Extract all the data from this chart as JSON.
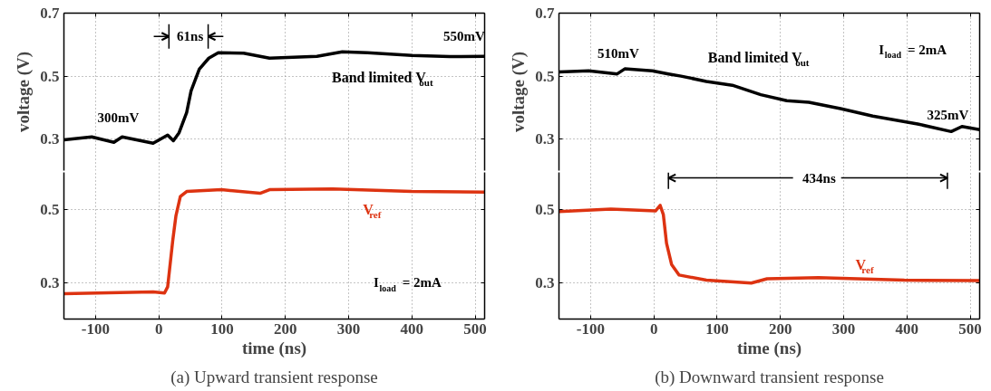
{
  "chart_data": [
    {
      "type": "line",
      "ylabel": "voltage (V)",
      "xlim": [
        -150,
        515
      ],
      "xticks": [
        -100,
        0,
        100,
        200,
        300,
        400,
        500
      ],
      "ylim": [
        0.2,
        0.7
      ],
      "yticks": [
        0.3,
        0.5,
        0.7
      ],
      "tick_labels": "y",
      "grid": true,
      "annotations": [
        "300mV",
        "61ns",
        "550mV"
      ],
      "series": [
        {
          "name": "Band limited V$_{out}$",
          "color": "#000000",
          "x": [
            -150,
            -106,
            -71,
            -58,
            -9,
            14,
            23,
            32,
            44,
            51,
            64,
            79,
            94,
            134,
            175,
            250,
            290,
            330,
            400,
            460,
            515
          ],
          "values": [
            0.298,
            0.307,
            0.29,
            0.307,
            0.287,
            0.313,
            0.295,
            0.32,
            0.384,
            0.453,
            0.522,
            0.557,
            0.574,
            0.573,
            0.557,
            0.563,
            0.577,
            0.574,
            0.566,
            0.562,
            0.563
          ]
        }
      ]
    },
    {
      "type": "line",
      "ylabel": "voltage (V)",
      "xlim": [
        -150,
        515
      ],
      "xticks": [
        -100,
        0,
        100,
        200,
        300,
        400,
        500
      ],
      "ylim": [
        0.2,
        0.7
      ],
      "yticks": [
        0.3,
        0.5,
        0.7
      ],
      "tick_labels": "y",
      "grid": true,
      "annotations": [
        "510mV",
        "325mV",
        "I$_{load}$ = 2mA"
      ],
      "series": [
        {
          "name": "Band limited V$_{out}$",
          "color": "#000000",
          "x": [
            -150,
            -103,
            -58,
            -46,
            -2.5,
            23,
            43,
            83,
            124,
            169,
            210,
            245,
            295,
            346,
            417,
            470,
            487,
            515
          ],
          "values": [
            0.513,
            0.517,
            0.507,
            0.523,
            0.517,
            0.507,
            0.5,
            0.483,
            0.471,
            0.441,
            0.422,
            0.417,
            0.397,
            0.373,
            0.348,
            0.324,
            0.34,
            0.33
          ]
        }
      ]
    },
    {
      "type": "line",
      "xlabel": "time (ns)",
      "xlim": [
        -150,
        515
      ],
      "xticks": [
        -100,
        0,
        100,
        200,
        300,
        400,
        500
      ],
      "ylim": [
        0.2,
        0.6
      ],
      "yticks": [
        0.3,
        0.5
      ],
      "grid": true,
      "annotations": [
        "I$_{load}$ = 2mA",
        "(a) Upward transient response"
      ],
      "series": [
        {
          "name": "V$_{ref}$",
          "color": "#dd3311",
          "x": [
            -150,
            -9,
            9,
            14,
            22,
            27,
            34,
            44,
            99,
            160,
            175,
            275,
            400,
            515
          ],
          "values": [
            0.269,
            0.274,
            0.271,
            0.288,
            0.414,
            0.481,
            0.534,
            0.548,
            0.553,
            0.543,
            0.553,
            0.555,
            0.548,
            0.546
          ]
        }
      ]
    },
    {
      "type": "line",
      "xlabel": "time (ns)",
      "xlim": [
        -150,
        515
      ],
      "xticks": [
        -100,
        0,
        100,
        200,
        300,
        400,
        500
      ],
      "ylim": [
        0.2,
        0.6
      ],
      "yticks": [
        0.3,
        0.5
      ],
      "grid": true,
      "annotations": [
        "434ns",
        "(b) Downward transient response"
      ],
      "series": [
        {
          "name": "V$_{ref}$",
          "color": "#dd3311",
          "x": [
            -150,
            -68,
            2.5,
            10,
            15,
            20,
            28,
            40,
            83,
            154,
            179,
            260,
            396,
            515
          ],
          "values": [
            0.493,
            0.5,
            0.495,
            0.51,
            0.485,
            0.407,
            0.349,
            0.32,
            0.306,
            0.298,
            0.31,
            0.313,
            0.306,
            0.305
          ]
        }
      ]
    }
  ]
}
